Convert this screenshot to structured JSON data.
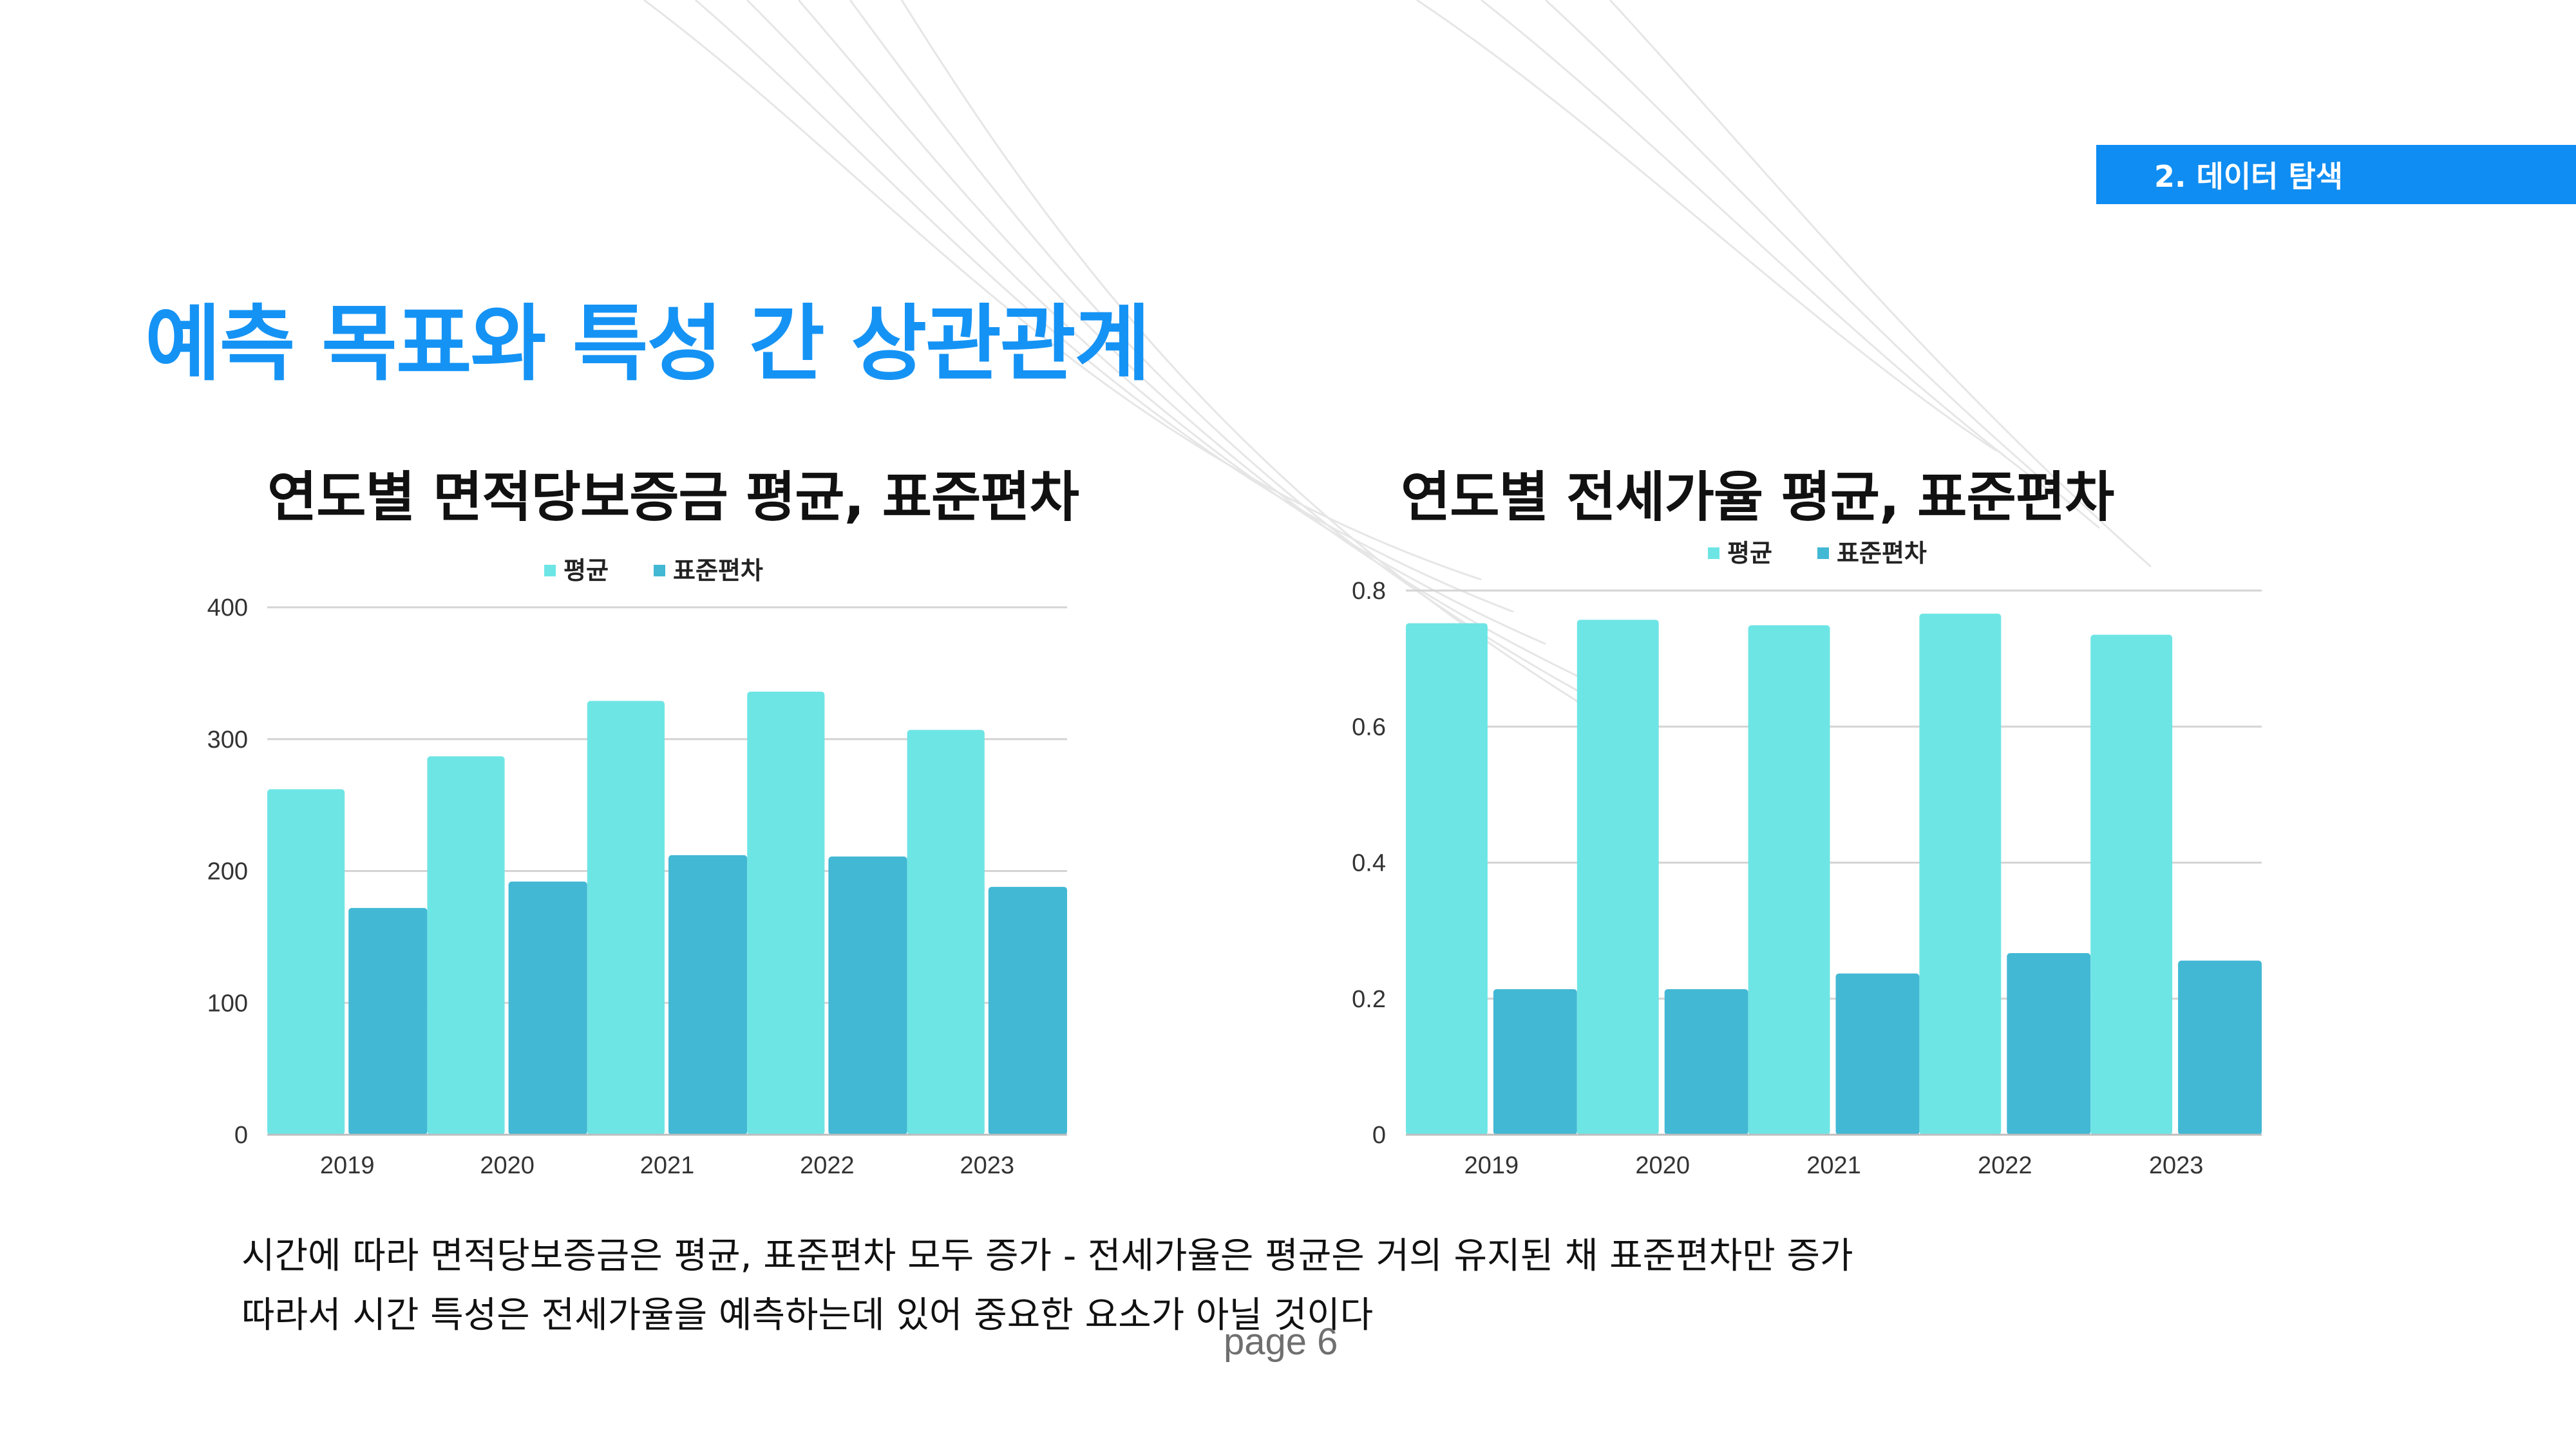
{
  "section_tag": "2. 데이터 탐색",
  "page_title": "예측 목표와 특성 간 상관관계",
  "caption": {
    "line1": "시간에 따라 면적당보증금은 평균, 표준편차 모두 증가 - 전세가율은 평균은 거의 유지된 채 표준편차만 증가",
    "line2": "따라서 시간 특성은 전세가율을 예측하는데 있어 중요한 요소가 아닐 것이다"
  },
  "page_number": "page 6",
  "colors": {
    "accent": "#1593f5",
    "tag_bg": "#0f8df2",
    "mean": "#6ee5e5",
    "std": "#42b8d4",
    "grid": "#d4d4d4"
  },
  "chart_data": [
    {
      "type": "bar",
      "title": "연도별 면적당보증금 평균, 표준편차",
      "categories": [
        "2019",
        "2020",
        "2021",
        "2022",
        "2023"
      ],
      "series": [
        {
          "name": "평균",
          "values": [
            262,
            287,
            329,
            336,
            307
          ]
        },
        {
          "name": "표준편차",
          "values": [
            172,
            192,
            212,
            211,
            188
          ]
        }
      ],
      "ylim": [
        0,
        400
      ],
      "yticks": [
        "0",
        "100",
        "200",
        "300",
        "400"
      ],
      "grid": true,
      "legend": "top-center"
    },
    {
      "type": "bar",
      "title": "연도별 전세가율 평균, 표준편차",
      "categories": [
        "2019",
        "2020",
        "2021",
        "2022",
        "2023"
      ],
      "series": [
        {
          "name": "평균",
          "values": [
            0.752,
            0.757,
            0.749,
            0.766,
            0.735
          ]
        },
        {
          "name": "표준편차",
          "values": [
            0.214,
            0.214,
            0.237,
            0.267,
            0.256
          ]
        }
      ],
      "ylim": [
        0,
        0.8
      ],
      "yticks": [
        "0",
        "0.2",
        "0.4",
        "0.6",
        "0.8"
      ],
      "grid": true,
      "legend": "top-center"
    }
  ]
}
